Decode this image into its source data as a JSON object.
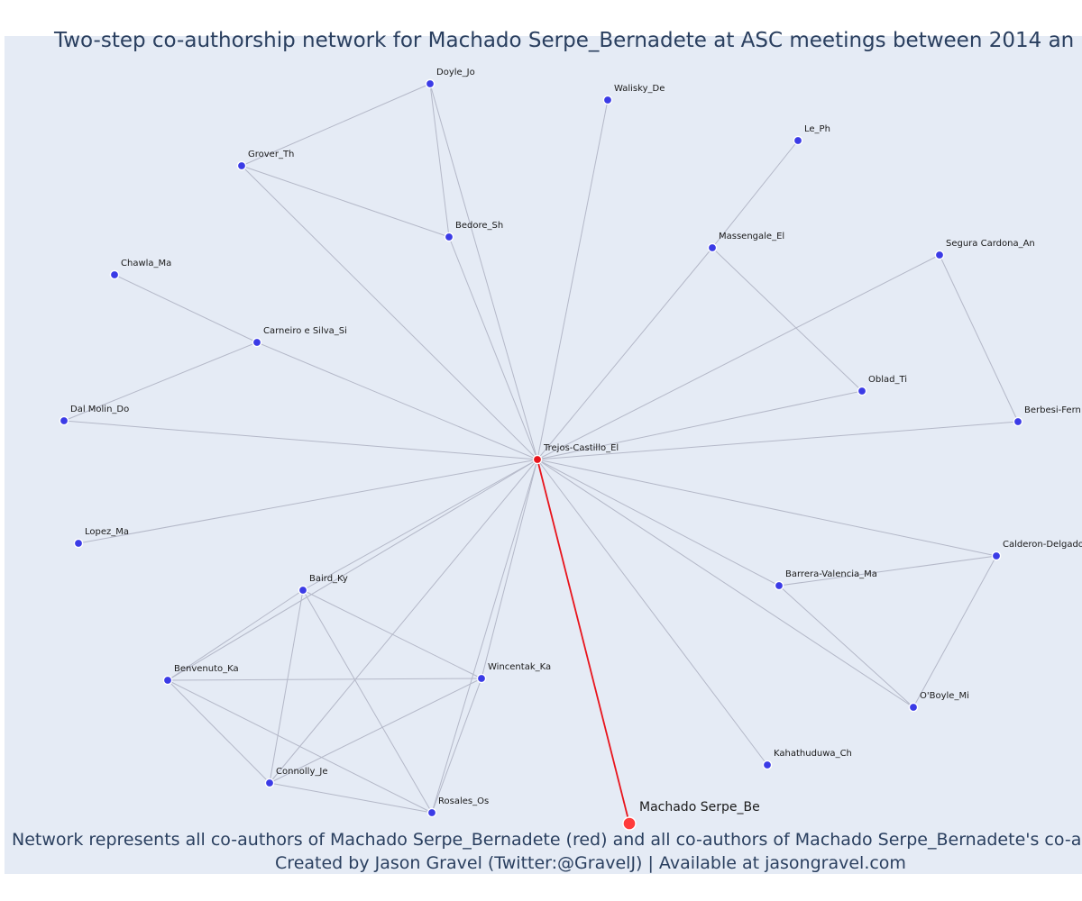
{
  "title": "Two-step co-authorship network for Machado Serpe_Bernadete at ASC meetings between 2014 an",
  "caption_line1": "Network represents all co-authors of Machado Serpe_Bernadete (red) and all co-authors of Machado Serpe_Bernadete's co-auth",
  "caption_line2": "Created by Jason Gravel (Twitter:@GravelJ) | Available at jasongravel.com",
  "colors": {
    "plot_background": "#e5ebf5",
    "node": "#3b3be6",
    "focal_node": "#ff3b3b",
    "focal_edge": "#e8141c",
    "edge": "#b4b8c8"
  },
  "chart_data": {
    "type": "network",
    "focal": "Machado Serpe_Be",
    "center": "Trejos-Castillo_El",
    "nodes": [
      {
        "id": "Doyle_Jo",
        "label": "Doyle_Jo"
      },
      {
        "id": "Walisky_De",
        "label": "Walisky_De"
      },
      {
        "id": "Le_Ph",
        "label": "Le_Ph"
      },
      {
        "id": "Grover_Th",
        "label": "Grover_Th"
      },
      {
        "id": "Bedore_Sh",
        "label": "Bedore_Sh"
      },
      {
        "id": "Massengale_El",
        "label": "Massengale_El"
      },
      {
        "id": "Segura_Cardona_An",
        "label": "Segura Cardona_An"
      },
      {
        "id": "Chawla_Ma",
        "label": "Chawla_Ma"
      },
      {
        "id": "Carneiro_e_Silva_Si",
        "label": "Carneiro e Silva_Si"
      },
      {
        "id": "Oblad_Ti",
        "label": "Oblad_Ti"
      },
      {
        "id": "Dal_Molin_Do",
        "label": "Dal Molin_Do"
      },
      {
        "id": "Berbesi_Fern",
        "label": "Berbesi-Fern"
      },
      {
        "id": "Trejos_Castillo_El",
        "label": "Trejos-Castillo_El"
      },
      {
        "id": "Lopez_Ma",
        "label": "Lopez_Ma"
      },
      {
        "id": "Calderon_Delgado",
        "label": "Calderon-Delgado"
      },
      {
        "id": "Baird_Ky",
        "label": "Baird_Ky"
      },
      {
        "id": "Barrera_Valencia_Ma",
        "label": "Barrera-Valencia_Ma"
      },
      {
        "id": "Benvenuto_Ka",
        "label": "Benvenuto_Ka"
      },
      {
        "id": "Wincentak_Ka",
        "label": "Wincentak_Ka"
      },
      {
        "id": "OBoyle_Mi",
        "label": "O'Boyle_Mi"
      },
      {
        "id": "Kahathuduwa_Ch",
        "label": "Kahathuduwa_Ch"
      },
      {
        "id": "Connolly_Je",
        "label": "Connolly_Je"
      },
      {
        "id": "Rosales_Os",
        "label": "Rosales_Os"
      },
      {
        "id": "Machado_Serpe_Be",
        "label": "Machado Serpe_Be"
      }
    ],
    "edges": [
      [
        "Trejos_Castillo_El",
        "Machado_Serpe_Be"
      ],
      [
        "Doyle_Jo",
        "Grover_Th"
      ],
      [
        "Doyle_Jo",
        "Bedore_Sh"
      ],
      [
        "Doyle_Jo",
        "Trejos_Castillo_El"
      ],
      [
        "Grover_Th",
        "Bedore_Sh"
      ],
      [
        "Grover_Th",
        "Trejos_Castillo_El"
      ],
      [
        "Bedore_Sh",
        "Trejos_Castillo_El"
      ],
      [
        "Walisky_De",
        "Trejos_Castillo_El"
      ],
      [
        "Le_Ph",
        "Massengale_El"
      ],
      [
        "Massengale_El",
        "Trejos_Castillo_El"
      ],
      [
        "Massengale_El",
        "Oblad_Ti"
      ],
      [
        "Segura_Cardona_An",
        "Trejos_Castillo_El"
      ],
      [
        "Segura_Cardona_An",
        "Berbesi_Fern"
      ],
      [
        "Chawla_Ma",
        "Carneiro_e_Silva_Si"
      ],
      [
        "Carneiro_e_Silva_Si",
        "Trejos_Castillo_El"
      ],
      [
        "Carneiro_e_Silva_Si",
        "Dal_Molin_Do"
      ],
      [
        "Dal_Molin_Do",
        "Trejos_Castillo_El"
      ],
      [
        "Oblad_Ti",
        "Trejos_Castillo_El"
      ],
      [
        "Berbesi_Fern",
        "Trejos_Castillo_El"
      ],
      [
        "Lopez_Ma",
        "Trejos_Castillo_El"
      ],
      [
        "Calderon_Delgado",
        "Trejos_Castillo_El"
      ],
      [
        "Calderon_Delgado",
        "Barrera_Valencia_Ma"
      ],
      [
        "Calderon_Delgado",
        "OBoyle_Mi"
      ],
      [
        "Barrera_Valencia_Ma",
        "Trejos_Castillo_El"
      ],
      [
        "Barrera_Valencia_Ma",
        "OBoyle_Mi"
      ],
      [
        "OBoyle_Mi",
        "Trejos_Castillo_El"
      ],
      [
        "Kahathuduwa_Ch",
        "Trejos_Castillo_El"
      ],
      [
        "Baird_Ky",
        "Trejos_Castillo_El"
      ],
      [
        "Baird_Ky",
        "Benvenuto_Ka"
      ],
      [
        "Baird_Ky",
        "Wincentak_Ka"
      ],
      [
        "Baird_Ky",
        "Connolly_Je"
      ],
      [
        "Baird_Ky",
        "Rosales_Os"
      ],
      [
        "Benvenuto_Ka",
        "Trejos_Castillo_El"
      ],
      [
        "Benvenuto_Ka",
        "Wincentak_Ka"
      ],
      [
        "Benvenuto_Ka",
        "Connolly_Je"
      ],
      [
        "Benvenuto_Ka",
        "Rosales_Os"
      ],
      [
        "Wincentak_Ka",
        "Trejos_Castillo_El"
      ],
      [
        "Wincentak_Ka",
        "Connolly_Je"
      ],
      [
        "Wincentak_Ka",
        "Rosales_Os"
      ],
      [
        "Connolly_Je",
        "Trejos_Castillo_El"
      ],
      [
        "Connolly_Je",
        "Rosales_Os"
      ],
      [
        "Rosales_Os",
        "Trejos_Castillo_El"
      ]
    ]
  }
}
